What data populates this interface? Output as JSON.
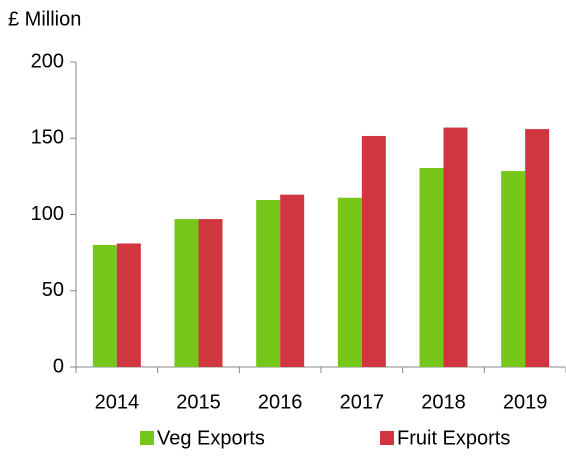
{
  "chart_data": {
    "type": "bar",
    "y_label": "£ Million",
    "categories": [
      "2014",
      "2015",
      "2016",
      "2017",
      "2018",
      "2019"
    ],
    "series": [
      {
        "name": "Veg Exports",
        "color": "#77c71a",
        "values": [
          80,
          97,
          109.5,
          111,
          130.5,
          128.5
        ]
      },
      {
        "name": "Fruit Exports",
        "color": "#d0363f",
        "values": [
          81,
          97,
          113,
          151.5,
          157,
          156
        ]
      }
    ],
    "ylim": [
      0,
      200
    ],
    "yticks": [
      0,
      50,
      100,
      150,
      200
    ],
    "grid": false,
    "legend": "bottom"
  }
}
